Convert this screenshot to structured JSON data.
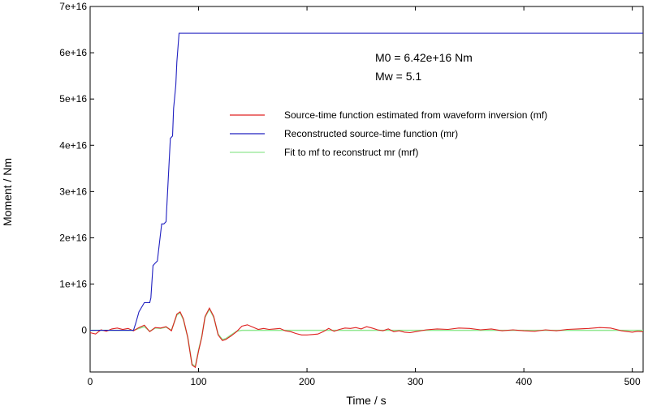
{
  "chart_data": {
    "type": "line",
    "xlabel": "Time / s",
    "ylabel": "Moment / Nm",
    "xlim": [
      0,
      510
    ],
    "ylim": [
      -9000000000000000.0,
      7e+16
    ],
    "x_ticks": [
      0,
      100,
      200,
      300,
      400,
      500
    ],
    "x_tick_labels": [
      "0",
      "100",
      "200",
      "300",
      "400",
      "500"
    ],
    "y_ticks": [
      0,
      1e+16,
      2e+16,
      3e+16,
      4e+16,
      5e+16,
      6e+16,
      7e+16
    ],
    "y_tick_labels": [
      "0",
      "1e+16",
      "2e+16",
      "3e+16",
      "4e+16",
      "5e+16",
      "6e+16",
      "7e+16"
    ],
    "grid": false,
    "legend_position": "upper-middle",
    "annotations": [
      "M0 = 6.42e+16 Nm",
      "Mw = 5.1"
    ],
    "colors": {
      "mf": "#e02020",
      "mr": "#2020c0",
      "mrf": "#90e890"
    },
    "series": [
      {
        "name": "Source-time function estimated from waveform inversion (mf)",
        "key": "mf",
        "x": [
          0,
          5,
          10,
          15,
          20,
          25,
          30,
          35,
          40,
          45,
          50,
          55,
          60,
          65,
          70,
          75,
          80,
          83,
          86,
          90,
          94,
          97,
          100,
          103,
          106,
          110,
          114,
          118,
          122,
          125,
          130,
          135,
          140,
          145,
          150,
          155,
          160,
          165,
          170,
          175,
          180,
          185,
          190,
          195,
          200,
          205,
          210,
          215,
          220,
          225,
          230,
          235,
          240,
          245,
          250,
          255,
          260,
          265,
          270,
          275,
          280,
          285,
          290,
          295,
          300,
          310,
          320,
          330,
          340,
          350,
          360,
          370,
          380,
          390,
          400,
          410,
          420,
          430,
          440,
          450,
          460,
          470,
          480,
          490,
          500,
          505,
          510
        ],
        "y": [
          -500000000000000.0,
          -800000000000000.0,
          100000000000000.0,
          -200000000000000.0,
          300000000000000.0,
          500000000000000.0,
          200000000000000.0,
          400000000000000.0,
          -100000000000000.0,
          600000000000000.0,
          1100000000000000.0,
          -300000000000000.0,
          600000000000000.0,
          500000000000000.0,
          800000000000000.0,
          -100000000000000.0,
          3500000000000000.0,
          4000000000000000.0,
          2500000000000000.0,
          -1500000000000000.0,
          -7500000000000000.0,
          -8000000000000000.0,
          -4500000000000000.0,
          -1500000000000000.0,
          3000000000000000.0,
          4800000000000000.0,
          3000000000000000.0,
          -1000000000000000.0,
          -2200000000000000.0,
          -2000000000000000.0,
          -1200000000000000.0,
          -300000000000000.0,
          900000000000000.0,
          1200000000000000.0,
          700000000000000.0,
          200000000000000.0,
          400000000000000.0,
          200000000000000.0,
          300000000000000.0,
          400000000000000.0,
          -100000000000000.0,
          -300000000000000.0,
          -700000000000000.0,
          -1000000000000000.0,
          -1000000000000000.0,
          -900000000000000.0,
          -800000000000000.0,
          -300000000000000.0,
          400000000000000.0,
          -200000000000000.0,
          200000000000000.0,
          500000000000000.0,
          400000000000000.0,
          600000000000000.0,
          300000000000000.0,
          800000000000000.0,
          500000000000000.0,
          100000000000000.0,
          -100000000000000.0,
          300000000000000.0,
          -300000000000000.0,
          -100000000000000.0,
          -400000000000000.0,
          -500000000000000.0,
          -300000000000000.0,
          100000000000000.0,
          300000000000000.0,
          200000000000000.0,
          500000000000000.0,
          400000000000000.0,
          100000000000000.0,
          300000000000000.0,
          -100000000000000.0,
          100000000000000.0,
          -100000000000000.0,
          -200000000000000.0,
          100000000000000.0,
          -100000000000000.0,
          200000000000000.0,
          300000000000000.0,
          400000000000000.0,
          600000000000000.0,
          500000000000000.0,
          -100000000000000.0,
          -400000000000000.0,
          -200000000000000.0,
          -300000000000000.0
        ]
      },
      {
        "name": "Reconstructed source-time function (mr)",
        "key": "mr",
        "x": [
          0,
          40,
          42,
          45,
          50,
          55,
          56,
          58,
          60,
          62,
          63,
          66,
          68,
          70,
          71,
          74,
          76,
          77,
          79,
          80,
          82,
          83,
          510
        ],
        "y": [
          0,
          0,
          1500000000000000.0,
          4000000000000000.0,
          6000000000000000.0,
          6000000000000000.0,
          7000000000000000.0,
          1.4e+16,
          1.45e+16,
          1.5e+16,
          1.7e+16,
          2.3e+16,
          2.3e+16,
          2.35e+16,
          2.8e+16,
          4.15e+16,
          4.2e+16,
          4.8e+16,
          5.3e+16,
          5.8e+16,
          6.42e+16,
          6.42e+16,
          6.42e+16
        ]
      },
      {
        "name": "Fit to mf to reconstruct mr (mrf)",
        "key": "mrf",
        "x": [
          0,
          40,
          45,
          50,
          55,
          60,
          65,
          70,
          75,
          80,
          83,
          86,
          90,
          94,
          97,
          100,
          103,
          106,
          110,
          114,
          118,
          122,
          125,
          130,
          135,
          140,
          145,
          510
        ],
        "y": [
          0,
          0,
          400000000000000.0,
          800000000000000.0,
          -200000000000000.0,
          500000000000000.0,
          400000000000000.0,
          700000000000000.0,
          0,
          3300000000000000.0,
          3800000000000000.0,
          2300000000000000.0,
          -1500000000000000.0,
          -7300000000000000.0,
          -7800000000000000.0,
          -4300000000000000.0,
          -1300000000000000.0,
          2800000000000000.0,
          4600000000000000.0,
          2800000000000000.0,
          -800000000000000.0,
          -2000000000000000.0,
          -1800000000000000.0,
          -1000000000000000.0,
          -200000000000000.0,
          0,
          0,
          0
        ]
      }
    ]
  }
}
